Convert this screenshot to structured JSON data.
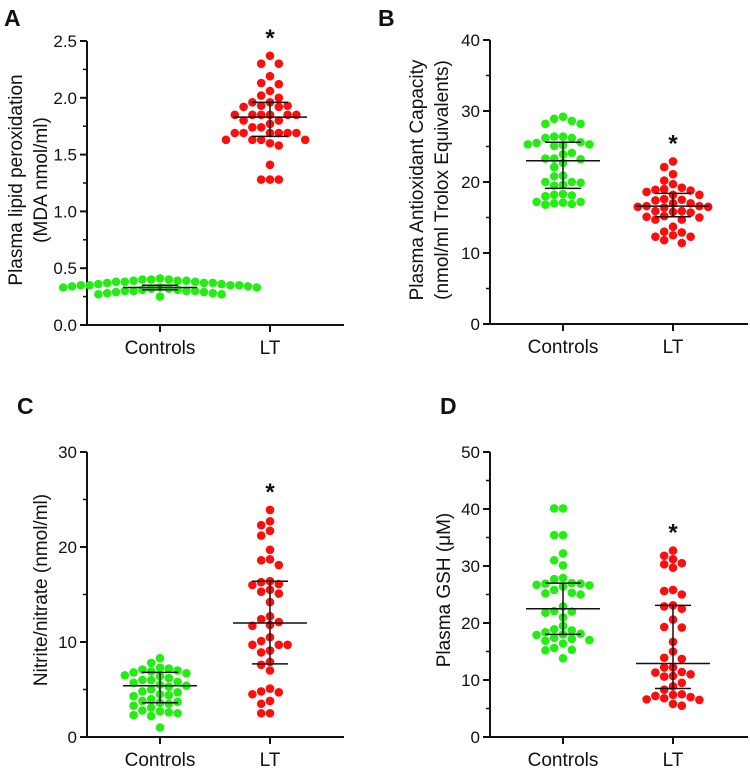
{
  "colors": {
    "Controls": "#22ee11",
    "LT": "#ff0d0d",
    "axis": "#111111"
  },
  "chart_data": [
    {
      "panel": "A",
      "type": "scatter",
      "ylabel": [
        "Plasma lipid peroxidation",
        "(MDA nmol/ml)"
      ],
      "ylim": [
        0,
        2.5
      ],
      "yticks": [
        "0.0",
        "0.5",
        "1.0",
        "1.5",
        "2.0",
        "2.5"
      ],
      "ytick_values": [
        0,
        0.5,
        1.0,
        1.5,
        2.0,
        2.5
      ],
      "minor_step": 0.25,
      "categories": [
        "Controls",
        "LT"
      ],
      "significance": "*",
      "groups": [
        {
          "name": "Controls",
          "center": 0.33,
          "lower": 0.31,
          "upper": 0.35,
          "values": [
            0.41,
            0.4,
            0.4,
            0.4,
            0.39,
            0.39,
            0.39,
            0.38,
            0.38,
            0.38,
            0.37,
            0.37,
            0.37,
            0.36,
            0.36,
            0.35,
            0.35,
            0.35,
            0.35,
            0.34,
            0.34,
            0.33,
            0.33,
            0.33,
            0.32,
            0.32,
            0.31,
            0.31,
            0.3,
            0.3,
            0.3,
            0.3,
            0.29,
            0.29,
            0.28,
            0.28,
            0.27,
            0.27,
            0.25
          ]
        },
        {
          "name": "LT",
          "center": 1.83,
          "lower": 1.66,
          "upper": 1.96,
          "values": [
            2.37,
            2.3,
            2.3,
            2.19,
            2.13,
            2.12,
            2.06,
            2.02,
            2.0,
            1.96,
            1.96,
            1.93,
            1.92,
            1.93,
            1.92,
            1.85,
            1.85,
            1.85,
            1.85,
            1.85,
            1.85,
            1.8,
            1.8,
            1.77,
            1.74,
            1.74,
            1.69,
            1.69,
            1.69,
            1.69,
            1.69,
            1.69,
            1.63,
            1.63,
            1.63,
            1.63,
            1.6,
            1.58,
            1.41,
            1.28,
            1.28,
            1.28
          ]
        }
      ]
    },
    {
      "panel": "B",
      "type": "scatter",
      "ylabel": [
        "Plasma Antioxidant Capacity",
        "(nmol/ml Trolox Equivalents)"
      ],
      "ylim": [
        0,
        40
      ],
      "yticks": [
        "0",
        "10",
        "20",
        "30",
        "40"
      ],
      "ytick_values": [
        0,
        10,
        20,
        30,
        40
      ],
      "minor_step": 5,
      "categories": [
        "Controls",
        "LT"
      ],
      "significance": "*",
      "groups": [
        {
          "name": "Controls",
          "center": 23.0,
          "lower": 19.1,
          "upper": 25.6,
          "values": [
            29.2,
            28.9,
            28.6,
            28.2,
            28.2,
            26.4,
            26.2,
            26.4,
            26.2,
            25.6,
            25.5,
            25.3,
            25.1,
            25.3,
            25.2,
            24.1,
            23.9,
            23.3,
            23.3,
            23.2,
            22.7,
            22.1,
            20.9,
            20.8,
            20.0,
            20.0,
            19.9,
            19.6,
            19.5,
            18.2,
            18.1,
            18.3,
            18.0,
            17.2,
            17.1,
            17.2,
            17.0,
            16.9,
            16.8
          ]
        },
        {
          "name": "LT",
          "center": 16.6,
          "lower": 15.1,
          "upper": 18.4,
          "values": [
            22.9,
            22.1,
            21.1,
            20.2,
            19.7,
            19.2,
            19.0,
            18.9,
            18.8,
            18.6,
            18.2,
            18.2,
            17.6,
            17.5,
            17.4,
            17.0,
            17.0,
            16.6,
            16.6,
            16.5,
            16.5,
            16.4,
            15.9,
            15.9,
            15.8,
            15.7,
            15.2,
            15.1,
            15.0,
            14.7,
            14.7,
            13.7,
            13.0,
            12.9,
            12.5,
            12.3,
            12.3,
            11.8,
            11.4
          ]
        }
      ]
    },
    {
      "panel": "C",
      "type": "scatter",
      "ylabel": [
        "Nitrite/nitrate (nmol/ml)"
      ],
      "ylim": [
        0,
        30
      ],
      "yticks": [
        "0",
        "10",
        "20",
        "30"
      ],
      "ytick_values": [
        0,
        10,
        20,
        30
      ],
      "minor_step": 5,
      "categories": [
        "Controls",
        "LT"
      ],
      "significance": "*",
      "groups": [
        {
          "name": "Controls",
          "center": 5.4,
          "lower": 3.6,
          "upper": 6.8,
          "values": [
            8.3,
            7.8,
            7.3,
            7.2,
            7.1,
            7.0,
            6.9,
            6.8,
            6.7,
            6.5,
            6.4,
            6.2,
            6.0,
            6.0,
            5.8,
            5.7,
            5.5,
            5.4,
            5.3,
            5.0,
            4.8,
            4.7,
            4.5,
            4.4,
            4.3,
            4.0,
            3.8,
            3.7,
            3.6,
            3.5,
            3.3,
            3.1,
            2.8,
            2.7,
            2.6,
            2.5,
            2.3,
            2.2,
            1.0
          ]
        },
        {
          "name": "LT",
          "center": 12.0,
          "lower": 7.7,
          "upper": 16.4,
          "values": [
            23.9,
            22.7,
            22.3,
            21.7,
            21.2,
            19.7,
            18.7,
            18.6,
            18.1,
            16.4,
            16.3,
            16.1,
            16.0,
            15.5,
            15.3,
            15.1,
            14.2,
            12.7,
            12.4,
            12.1,
            11.8,
            11.7,
            10.5,
            10.1,
            9.7,
            9.7,
            9.7,
            9.1,
            8.9,
            7.9,
            7.6,
            7.0,
            5.1,
            4.8,
            4.7,
            4.5,
            3.8,
            3.5,
            2.5,
            2.5
          ]
        }
      ]
    },
    {
      "panel": "D",
      "type": "scatter",
      "ylabel": [
        "Plasma GSH (μM)"
      ],
      "ylim": [
        0,
        50
      ],
      "yticks": [
        "0",
        "10",
        "20",
        "30",
        "40",
        "50"
      ],
      "ytick_values": [
        0,
        10,
        20,
        30,
        40,
        50
      ],
      "minor_step": 5,
      "categories": [
        "Controls",
        "LT"
      ],
      "significance": "*",
      "groups": [
        {
          "name": "Controls",
          "center": 22.5,
          "lower": 18.0,
          "upper": 27.0,
          "values": [
            40.1,
            40.1,
            35.4,
            35.4,
            32.2,
            31.0,
            30.1,
            27.9,
            27.7,
            27.0,
            26.9,
            26.9,
            26.6,
            26.7,
            26.4,
            25.8,
            25.3,
            25.2,
            25.0,
            22.9,
            22.1,
            22.0,
            21.8,
            21.0,
            19.5,
            18.9,
            18.7,
            18.4,
            18.0,
            18.1,
            17.9,
            17.4,
            17.2,
            17.0,
            16.9,
            16.4,
            15.6,
            15.3,
            15.2,
            13.8
          ]
        },
        {
          "name": "LT",
          "center": 12.9,
          "lower": 8.5,
          "upper": 23.1,
          "values": [
            32.7,
            31.8,
            31.2,
            30.5,
            30.3,
            29.7,
            25.8,
            25.6,
            25.0,
            23.1,
            22.9,
            22.5,
            20.6,
            19.3,
            19.2,
            16.7,
            15.0,
            13.9,
            13.7,
            12.2,
            12.2,
            11.4,
            11.3,
            11.0,
            10.7,
            10.6,
            9.5,
            8.9,
            8.3,
            7.5,
            7.4,
            7.2,
            7.0,
            6.8,
            6.6,
            6.5,
            5.8,
            5.5
          ]
        }
      ]
    }
  ]
}
